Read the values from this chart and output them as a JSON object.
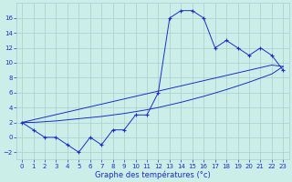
{
  "xlabel": "Graphe des températures (°c)",
  "bg_color": "#cceee8",
  "grid_color": "#aacccc",
  "line_color": "#1a2ecc",
  "x_values": [
    0,
    1,
    2,
    3,
    4,
    5,
    6,
    7,
    8,
    9,
    10,
    11,
    12,
    13,
    14,
    15,
    16,
    17,
    18,
    19,
    20,
    21,
    22,
    23
  ],
  "line1_y": [
    2,
    1,
    0,
    0,
    -1,
    -2,
    0,
    -1,
    1,
    1,
    3,
    3,
    6,
    16,
    17,
    17,
    16,
    12,
    13,
    12,
    11,
    12,
    11,
    9
  ],
  "line2_y": [
    2.0,
    2.35,
    2.7,
    3.05,
    3.4,
    3.75,
    4.1,
    4.45,
    4.8,
    5.15,
    5.5,
    5.85,
    6.2,
    6.55,
    6.9,
    7.25,
    7.6,
    7.95,
    8.3,
    8.65,
    9.0,
    9.35,
    9.7,
    9.5
  ],
  "line3_y": [
    2.0,
    2.0,
    2.1,
    2.2,
    2.35,
    2.5,
    2.65,
    2.8,
    3.0,
    3.2,
    3.45,
    3.7,
    4.0,
    4.35,
    4.7,
    5.1,
    5.5,
    5.95,
    6.4,
    6.9,
    7.4,
    7.95,
    8.5,
    9.5
  ],
  "ylim": [
    -3,
    18
  ],
  "xlim": [
    -0.5,
    23.5
  ],
  "yticks": [
    -2,
    0,
    2,
    4,
    6,
    8,
    10,
    12,
    14,
    16
  ],
  "xticks": [
    0,
    1,
    2,
    3,
    4,
    5,
    6,
    7,
    8,
    9,
    10,
    11,
    12,
    13,
    14,
    15,
    16,
    17,
    18,
    19,
    20,
    21,
    22,
    23
  ],
  "tick_fontsize": 5.0,
  "xlabel_fontsize": 6.0
}
